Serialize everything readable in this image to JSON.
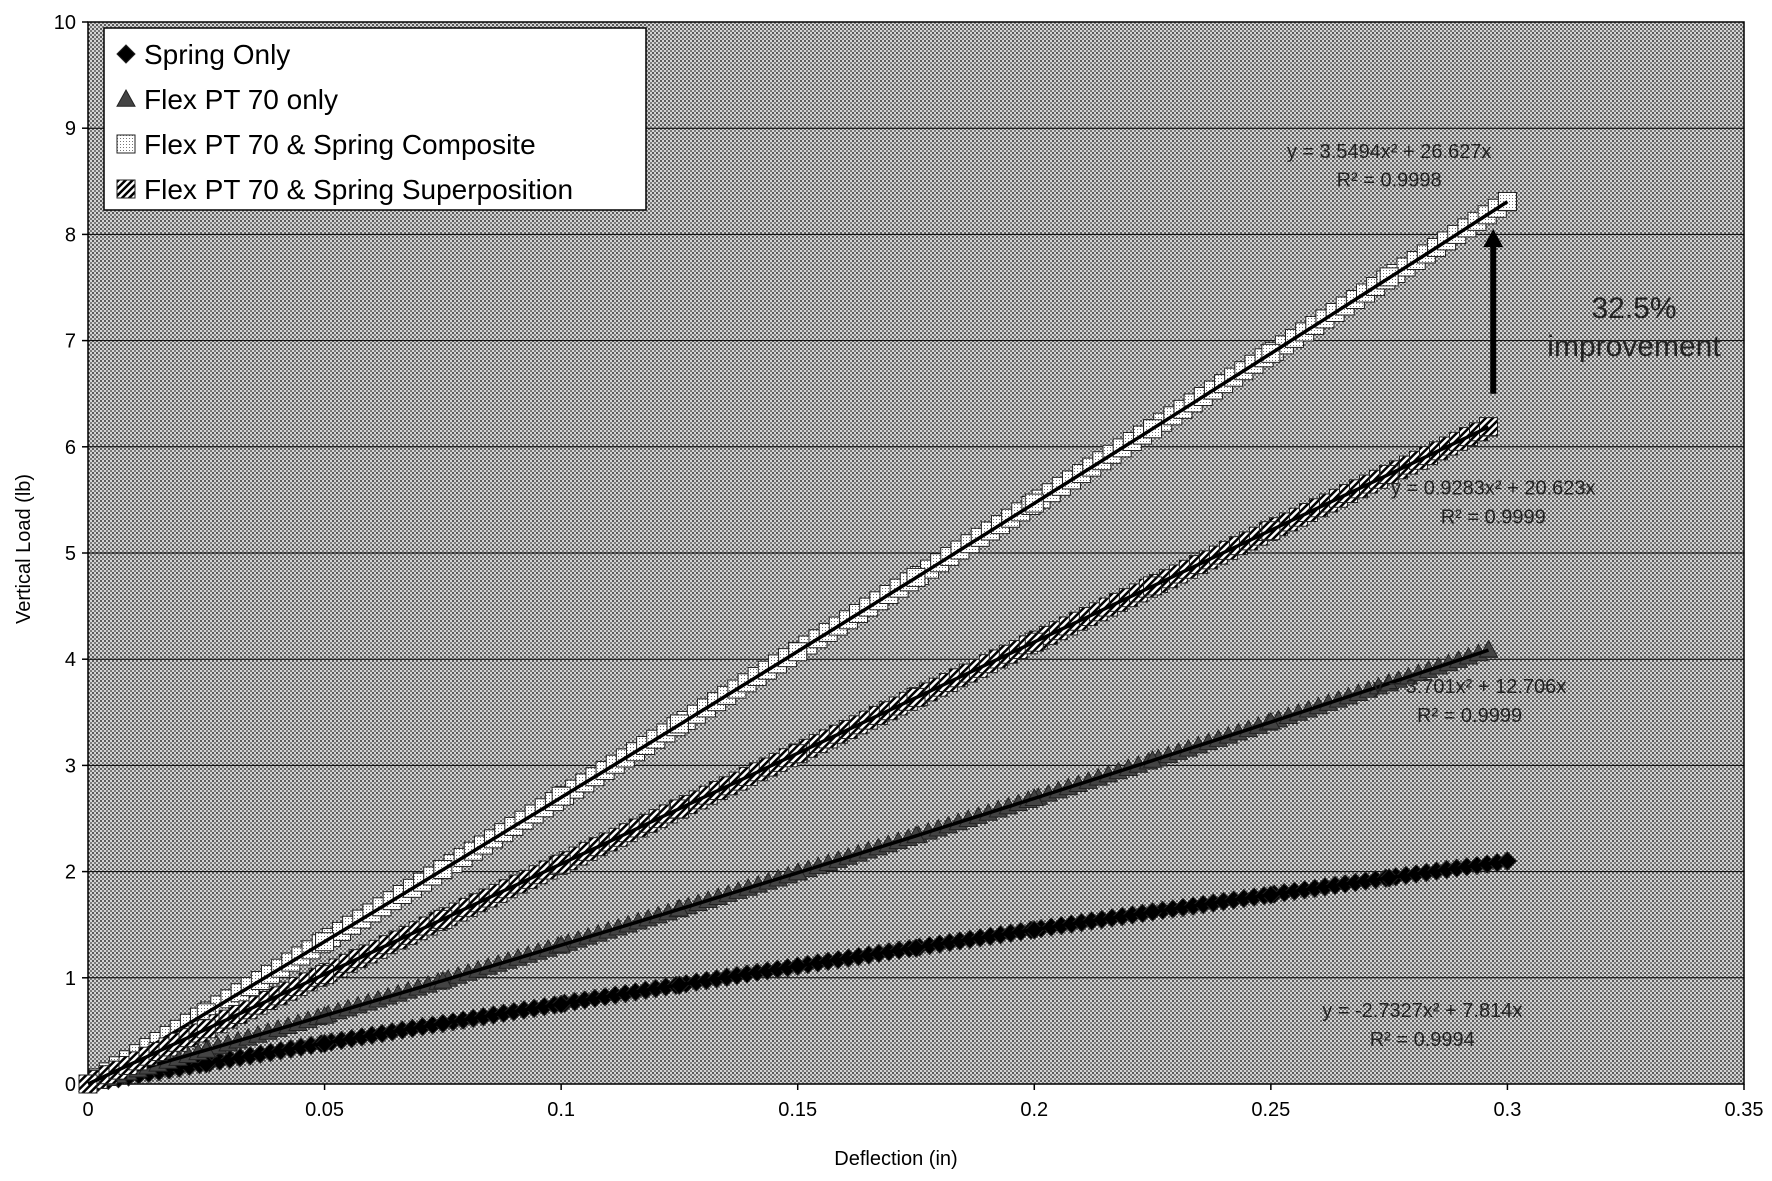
{
  "chart_data": {
    "type": "scatter",
    "title": "",
    "xlabel": "Deflection (in)",
    "ylabel": "Vertical Load (lb)",
    "xlim": [
      0,
      0.35
    ],
    "ylim": [
      0,
      10
    ],
    "x_ticks": [
      0,
      0.05,
      0.1,
      0.15,
      0.2,
      0.25,
      0.3,
      0.35
    ],
    "x_tick_labels": [
      "0",
      "0.05",
      "0.1",
      "0.15",
      "0.2",
      "0.25",
      "0.3",
      "0.35"
    ],
    "y_ticks": [
      0,
      1,
      2,
      3,
      4,
      5,
      6,
      7,
      8,
      9,
      10
    ],
    "y_tick_labels": [
      "0",
      "1",
      "2",
      "3",
      "4",
      "5",
      "6",
      "7",
      "8",
      "9",
      "10"
    ],
    "grid": "horizontal",
    "legend_position": "top-left",
    "series": [
      {
        "name": "Spring Only",
        "marker": "diamond",
        "x": [
          0,
          0.025,
          0.05,
          0.075,
          0.1,
          0.125,
          0.15,
          0.175,
          0.2,
          0.225,
          0.25,
          0.275,
          0.3
        ],
        "y": [
          0,
          0.19,
          0.38,
          0.57,
          0.75,
          0.93,
          1.11,
          1.28,
          1.45,
          1.62,
          1.78,
          1.94,
          2.1
        ],
        "trendline": {
          "a": -2.7327,
          "b": 7.814,
          "x_max": 0.3,
          "equation": "y = -2.7327x² + 7.814x",
          "r2": "R² = 0.9994"
        }
      },
      {
        "name": "Flex PT 70 only",
        "marker": "triangle",
        "x": [
          0,
          0.025,
          0.05,
          0.075,
          0.1,
          0.125,
          0.15,
          0.175,
          0.2,
          0.225,
          0.25,
          0.275,
          0.296
        ],
        "y": [
          0,
          0.32,
          0.64,
          0.97,
          1.31,
          1.65,
          1.99,
          2.34,
          2.69,
          3.05,
          3.41,
          3.77,
          4.09
        ],
        "trendline": {
          "a": 3.701,
          "b": 12.706,
          "x_max": 0.296,
          "equation": "y = 3.701x² + 12.706x",
          "r2": "R² = 0.9999"
        }
      },
      {
        "name": "Flex PT 70 & Spring Composite",
        "marker": "square",
        "x": [
          0,
          0.025,
          0.05,
          0.075,
          0.1,
          0.125,
          0.15,
          0.175,
          0.2,
          0.225,
          0.25,
          0.275,
          0.3
        ],
        "y": [
          0,
          0.67,
          1.34,
          2.02,
          2.71,
          3.39,
          4.07,
          4.77,
          5.47,
          6.17,
          6.88,
          7.6,
          8.31
        ],
        "trendline": {
          "a": 3.5494,
          "b": 26.627,
          "x_max": 0.3,
          "equation": "y = 3.5494x² + 26.627x",
          "r2": "R² = 0.9998"
        }
      },
      {
        "name": "Flex PT 70 & Spring Superposition",
        "marker": "hatched-square",
        "x": [
          0,
          0.025,
          0.05,
          0.075,
          0.1,
          0.125,
          0.15,
          0.175,
          0.2,
          0.225,
          0.25,
          0.275,
          0.296
        ],
        "y": [
          0,
          0.52,
          1.03,
          1.55,
          2.07,
          2.59,
          3.11,
          3.64,
          4.16,
          4.69,
          5.21,
          5.74,
          6.19
        ],
        "trendline": {
          "a": 0.9283,
          "b": 20.623,
          "x_max": 0.296,
          "equation": "y = 0.9283x² + 20.623x",
          "r2": "R² = 0.9999"
        }
      }
    ],
    "annotation": {
      "line1": "32.5%",
      "line2": "improvement",
      "arrow_x": 0.297,
      "arrow_from_y": 6.5,
      "arrow_to_y": 8.05
    }
  }
}
